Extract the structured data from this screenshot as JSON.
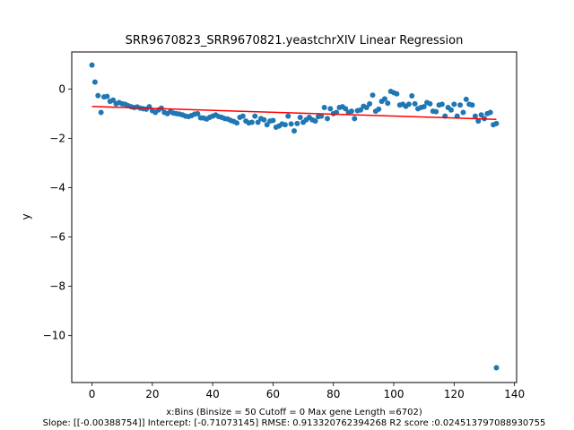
{
  "chart_data": {
    "type": "scatter",
    "title": "SRR9670823_SRR9670821.yeastchrXIV Linear Regression",
    "xlabel": "x:Bins  (Binsize = 50 Cutoff = 0 Max gene Length =6702)",
    "ylabel": "y",
    "caption": "Slope: [[-0.00388754]] Intercept: [-0.71073145] RMSE: 0.913320762394268 R2 score :0.024513797088930755",
    "xlim": [
      -6.7,
      140.7
    ],
    "ylim": [
      -11.9,
      1.5
    ],
    "xticks": [
      0,
      20,
      40,
      60,
      80,
      100,
      120,
      140
    ],
    "yticks": [
      0,
      -2,
      -4,
      -6,
      -8,
      -10
    ],
    "grid": false,
    "point_color": "#1f77b4",
    "line_color": "#ff0000",
    "regression": {
      "slope": -0.00388754,
      "intercept": -0.71073145,
      "x_range": [
        0,
        134
      ]
    },
    "points": [
      [
        0,
        0.97
      ],
      [
        1,
        0.28
      ],
      [
        2,
        -0.27
      ],
      [
        3,
        -0.95
      ],
      [
        4,
        -0.32
      ],
      [
        5,
        -0.3
      ],
      [
        6,
        -0.5
      ],
      [
        7,
        -0.45
      ],
      [
        8,
        -0.6
      ],
      [
        9,
        -0.55
      ],
      [
        10,
        -0.6
      ],
      [
        11,
        -0.62
      ],
      [
        12,
        -0.68
      ],
      [
        13,
        -0.72
      ],
      [
        14,
        -0.75
      ],
      [
        15,
        -0.73
      ],
      [
        16,
        -0.78
      ],
      [
        17,
        -0.8
      ],
      [
        18,
        -0.82
      ],
      [
        19,
        -0.72
      ],
      [
        20,
        -0.88
      ],
      [
        21,
        -0.95
      ],
      [
        22,
        -0.85
      ],
      [
        23,
        -0.78
      ],
      [
        24,
        -0.95
      ],
      [
        25,
        -1.0
      ],
      [
        26,
        -0.92
      ],
      [
        27,
        -0.98
      ],
      [
        28,
        -1.0
      ],
      [
        29,
        -1.02
      ],
      [
        30,
        -1.05
      ],
      [
        31,
        -1.1
      ],
      [
        32,
        -1.12
      ],
      [
        33,
        -1.08
      ],
      [
        34,
        -1.02
      ],
      [
        35,
        -1.0
      ],
      [
        36,
        -1.17
      ],
      [
        37,
        -1.18
      ],
      [
        38,
        -1.22
      ],
      [
        39,
        -1.15
      ],
      [
        40,
        -1.1
      ],
      [
        41,
        -1.05
      ],
      [
        42,
        -1.12
      ],
      [
        43,
        -1.15
      ],
      [
        44,
        -1.2
      ],
      [
        45,
        -1.22
      ],
      [
        46,
        -1.28
      ],
      [
        47,
        -1.32
      ],
      [
        48,
        -1.38
      ],
      [
        49,
        -1.15
      ],
      [
        50,
        -1.1
      ],
      [
        51,
        -1.3
      ],
      [
        52,
        -1.38
      ],
      [
        53,
        -1.35
      ],
      [
        54,
        -1.1
      ],
      [
        55,
        -1.35
      ],
      [
        56,
        -1.2
      ],
      [
        57,
        -1.25
      ],
      [
        58,
        -1.45
      ],
      [
        59,
        -1.3
      ],
      [
        60,
        -1.28
      ],
      [
        61,
        -1.55
      ],
      [
        62,
        -1.5
      ],
      [
        63,
        -1.42
      ],
      [
        64,
        -1.45
      ],
      [
        65,
        -1.1
      ],
      [
        66,
        -1.42
      ],
      [
        67,
        -1.7
      ],
      [
        68,
        -1.4
      ],
      [
        69,
        -1.15
      ],
      [
        70,
        -1.35
      ],
      [
        71,
        -1.25
      ],
      [
        72,
        -1.15
      ],
      [
        73,
        -1.25
      ],
      [
        74,
        -1.3
      ],
      [
        75,
        -1.12
      ],
      [
        76,
        -1.1
      ],
      [
        77,
        -0.75
      ],
      [
        78,
        -1.2
      ],
      [
        79,
        -0.8
      ],
      [
        80,
        -1.0
      ],
      [
        81,
        -0.95
      ],
      [
        82,
        -0.75
      ],
      [
        83,
        -0.72
      ],
      [
        84,
        -0.8
      ],
      [
        85,
        -0.95
      ],
      [
        86,
        -0.9
      ],
      [
        87,
        -1.2
      ],
      [
        88,
        -0.88
      ],
      [
        89,
        -0.85
      ],
      [
        90,
        -0.7
      ],
      [
        91,
        -0.75
      ],
      [
        92,
        -0.6
      ],
      [
        93,
        -0.25
      ],
      [
        94,
        -0.9
      ],
      [
        95,
        -0.82
      ],
      [
        96,
        -0.5
      ],
      [
        97,
        -0.4
      ],
      [
        98,
        -0.58
      ],
      [
        99,
        -0.1
      ],
      [
        100,
        -0.15
      ],
      [
        101,
        -0.2
      ],
      [
        102,
        -0.65
      ],
      [
        103,
        -0.62
      ],
      [
        104,
        -0.7
      ],
      [
        105,
        -0.62
      ],
      [
        106,
        -0.28
      ],
      [
        107,
        -0.6
      ],
      [
        108,
        -0.8
      ],
      [
        109,
        -0.75
      ],
      [
        110,
        -0.72
      ],
      [
        111,
        -0.55
      ],
      [
        112,
        -0.6
      ],
      [
        113,
        -0.9
      ],
      [
        114,
        -0.92
      ],
      [
        115,
        -0.65
      ],
      [
        116,
        -0.62
      ],
      [
        117,
        -1.1
      ],
      [
        118,
        -0.75
      ],
      [
        119,
        -0.85
      ],
      [
        120,
        -0.62
      ],
      [
        121,
        -1.1
      ],
      [
        122,
        -0.65
      ],
      [
        123,
        -0.95
      ],
      [
        124,
        -0.42
      ],
      [
        125,
        -0.62
      ],
      [
        126,
        -0.65
      ],
      [
        127,
        -1.1
      ],
      [
        128,
        -1.3
      ],
      [
        129,
        -1.05
      ],
      [
        130,
        -1.2
      ],
      [
        131,
        -1.0
      ],
      [
        132,
        -0.95
      ],
      [
        133,
        -1.45
      ],
      [
        134,
        -1.4
      ],
      [
        134,
        -11.3
      ]
    ]
  }
}
